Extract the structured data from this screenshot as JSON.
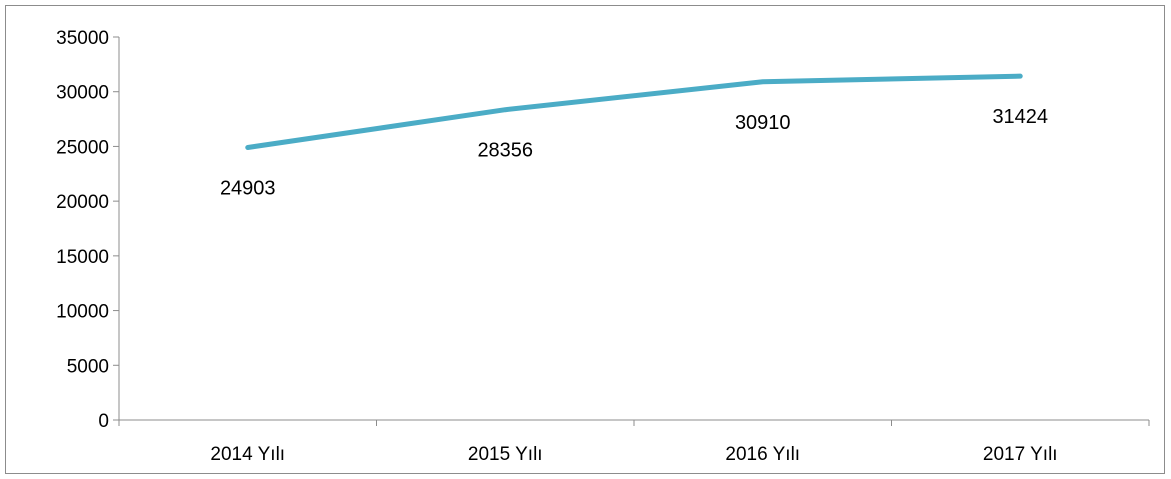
{
  "chart_data": {
    "type": "line",
    "title": "",
    "xlabel": "",
    "ylabel": "",
    "categories": [
      "2014 Yılı",
      "2015 Yılı",
      "2016 Yılı",
      "2017 Yılı"
    ],
    "series": [
      {
        "values": [
          24903,
          28356,
          30910,
          31424
        ],
        "color": "#4bacc6"
      }
    ],
    "data_labels": [
      "24903",
      "28356",
      "30910",
      "31424"
    ],
    "ylim": [
      0,
      35000
    ],
    "yticks": [
      0,
      5000,
      10000,
      15000,
      20000,
      25000,
      30000,
      35000
    ],
    "ytick_labels": [
      "0",
      "5000",
      "10000",
      "15000",
      "20000",
      "25000",
      "30000",
      "35000"
    ],
    "grid": false,
    "legend": "none"
  }
}
